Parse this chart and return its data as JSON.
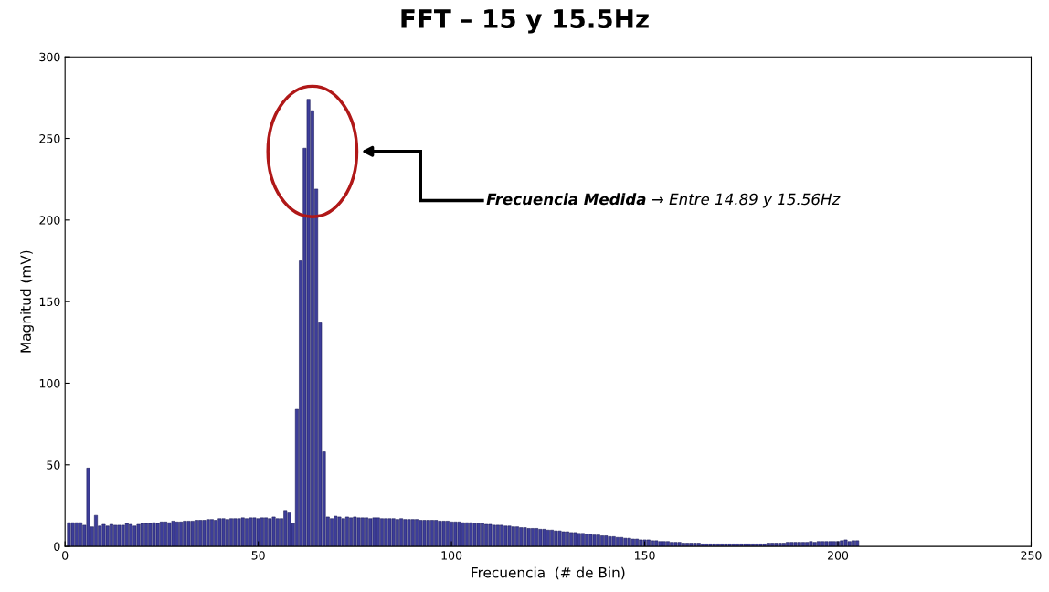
{
  "chart_data": {
    "type": "bar",
    "title": "FFT – 15 y 15.5Hz",
    "xlabel": "Frecuencia  (# de Bin)",
    "ylabel": "Magnitud (mV)",
    "annotations": [
      "Frecuencia Medida",
      "→ Entre 14.89 y 15.56Hz"
    ],
    "x": [
      1,
      2,
      3,
      4,
      5,
      6,
      7,
      8,
      9,
      10,
      11,
      12,
      13,
      14,
      15,
      16,
      17,
      18,
      19,
      20,
      21,
      22,
      23,
      24,
      25,
      26,
      27,
      28,
      29,
      30,
      31,
      32,
      33,
      34,
      35,
      36,
      37,
      38,
      39,
      40,
      41,
      42,
      43,
      44,
      45,
      46,
      47,
      48,
      49,
      50,
      51,
      52,
      53,
      54,
      55,
      56,
      57,
      58,
      59,
      60,
      61,
      62,
      63,
      64,
      65,
      66,
      67,
      68,
      69,
      70,
      71,
      72,
      73,
      74,
      75,
      76,
      77,
      78,
      79,
      80,
      81,
      82,
      83,
      84,
      85,
      86,
      87,
      88,
      89,
      90,
      91,
      92,
      93,
      94,
      95,
      96,
      97,
      98,
      99,
      100,
      101,
      102,
      103,
      104,
      105,
      106,
      107,
      108,
      109,
      110,
      111,
      112,
      113,
      114,
      115,
      116,
      117,
      118,
      119,
      120,
      121,
      122,
      123,
      124,
      125,
      126,
      127,
      128,
      129,
      130,
      131,
      132,
      133,
      134,
      135,
      136,
      137,
      138,
      139,
      140,
      141,
      142,
      143,
      144,
      145,
      146,
      147,
      148,
      149,
      150,
      151,
      152,
      153,
      154,
      155,
      156,
      157,
      158,
      159,
      160,
      161,
      162,
      163,
      164,
      165,
      166,
      167,
      168,
      169,
      170,
      171,
      172,
      173,
      174,
      175,
      176,
      177,
      178,
      179,
      180,
      181,
      182,
      183,
      184,
      185,
      186,
      187,
      188,
      189,
      190,
      191,
      192,
      193,
      194,
      195,
      196,
      197,
      198,
      199,
      200,
      201,
      202,
      203,
      204,
      205
    ],
    "values": [
      14.5,
      14.5,
      14.5,
      14.5,
      13,
      48,
      12,
      19,
      12.5,
      13.5,
      12.5,
      13.5,
      13,
      13,
      13,
      14,
      13.5,
      12.5,
      13.5,
      14,
      14,
      14,
      14.5,
      14,
      15,
      15,
      14.5,
      15.5,
      15,
      15,
      15.5,
      15.5,
      15.5,
      16,
      16,
      16,
      16.5,
      16.5,
      16,
      17,
      17,
      16.5,
      17,
      17,
      17,
      17.5,
      17,
      17.5,
      17.5,
      17,
      17.5,
      17.5,
      17,
      18,
      17,
      17,
      22,
      21,
      14,
      84,
      175,
      244,
      274,
      267,
      219,
      137,
      58,
      18,
      17,
      18.5,
      18,
      17,
      18,
      17.5,
      18,
      17.5,
      17.5,
      17.5,
      17,
      17.5,
      17.5,
      17,
      17,
      17,
      17,
      16.5,
      17,
      16.5,
      16.5,
      16.5,
      16.5,
      16,
      16,
      16,
      16,
      16,
      15.5,
      15.5,
      15.5,
      15,
      15,
      15,
      14.5,
      14.5,
      14.5,
      14,
      14,
      14,
      13.5,
      13.5,
      13,
      13,
      13,
      12.5,
      12.5,
      12,
      12,
      11.5,
      11.5,
      11,
      11,
      11,
      10.5,
      10.5,
      10,
      10,
      9.5,
      9.5,
      9,
      9,
      8.5,
      8.5,
      8,
      8,
      7.5,
      7.5,
      7,
      7,
      6.5,
      6.5,
      6,
      6,
      5.5,
      5.5,
      5,
      5,
      4.5,
      4.5,
      4,
      4,
      4,
      3.5,
      3.5,
      3,
      3,
      3,
      2.5,
      2.5,
      2.5,
      2,
      2,
      2,
      2,
      2,
      1.5,
      1.5,
      1.5,
      1.5,
      1.5,
      1.5,
      1.5,
      1.5,
      1.5,
      1.5,
      1.5,
      1.5,
      1.5,
      1.5,
      1.5,
      1.5,
      1.5,
      2,
      2,
      2,
      2,
      2,
      2.5,
      2.5,
      2.5,
      2.5,
      2.5,
      2.5,
      3,
      2.5,
      3,
      3,
      3,
      3,
      3,
      3,
      3.5,
      4,
      3,
      3.5,
      3.5
    ],
    "color": "#3d3d99",
    "xlim": [
      0,
      250
    ],
    "xticks": [
      0,
      50,
      100,
      150,
      200,
      250
    ],
    "ylim": [
      0,
      300
    ],
    "yticks": [
      0,
      50,
      100,
      150,
      200,
      250,
      300
    ],
    "grid": false,
    "legend": false
  }
}
